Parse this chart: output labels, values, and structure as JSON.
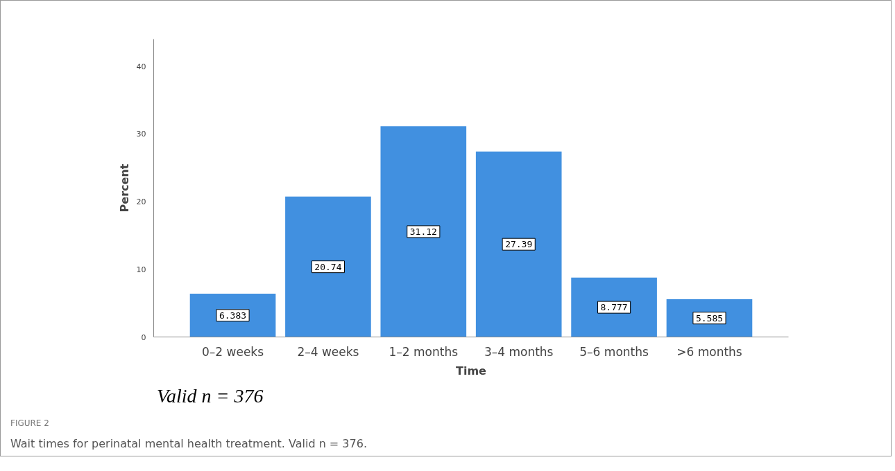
{
  "chart_data": {
    "type": "bar",
    "xlabel": "Time",
    "ylabel": "Percent",
    "categories": [
      "0–2 weeks",
      "2–4 weeks",
      "1–2 months",
      "3–4 months",
      "5–6 months",
      ">6 months"
    ],
    "values": [
      6.383,
      20.74,
      31.12,
      27.39,
      8.777,
      5.585
    ],
    "color": "#4190e0",
    "ylim": [
      0,
      44
    ],
    "yticks": [
      0,
      10,
      20,
      30,
      40
    ],
    "grid": false,
    "data_labels": true,
    "annotations": [
      "Valid n = 376",
      "FIGURE 2",
      "Wait times for perinatal mental health treatment. Valid n = 376."
    ]
  }
}
